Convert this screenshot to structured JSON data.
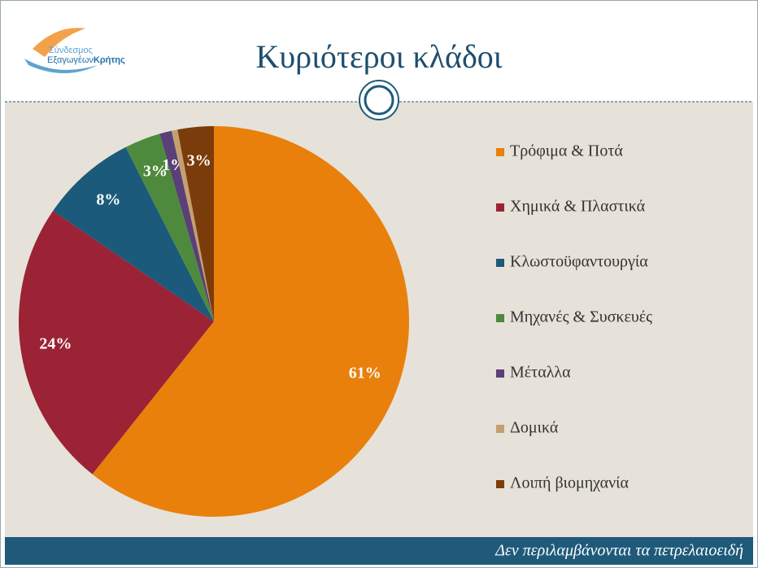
{
  "logo": {
    "line1": "Σύνδεσμος",
    "line2a": "Εξαγωγέων",
    "line2b": "Κρήτης"
  },
  "chart_data": {
    "type": "pie",
    "title": "Κυριότεροι κλάδοι",
    "categories": [
      "Τρόφιμα & Ποτά",
      "Χημικά & Πλαστικά",
      "Κλωστοϋφαντουργία",
      "Μηχανές & Συσκευές",
      "Μέταλλα",
      "Δομικά",
      "Λοιπή βιομηχανία"
    ],
    "values": [
      61,
      24,
      8,
      3,
      1,
      0.5,
      3
    ],
    "value_labels": [
      "61%",
      "24%",
      "8%",
      "3%",
      "1%",
      null,
      "3%"
    ],
    "colors": [
      "#e8800b",
      "#9b2335",
      "#1b5a7a",
      "#4e8a3e",
      "#5b3f78",
      "#c4a070",
      "#7b3c0b"
    ],
    "legend": "right"
  },
  "footnote": "Δεν περιλαμβάνονται τα πετρελαιοειδή"
}
